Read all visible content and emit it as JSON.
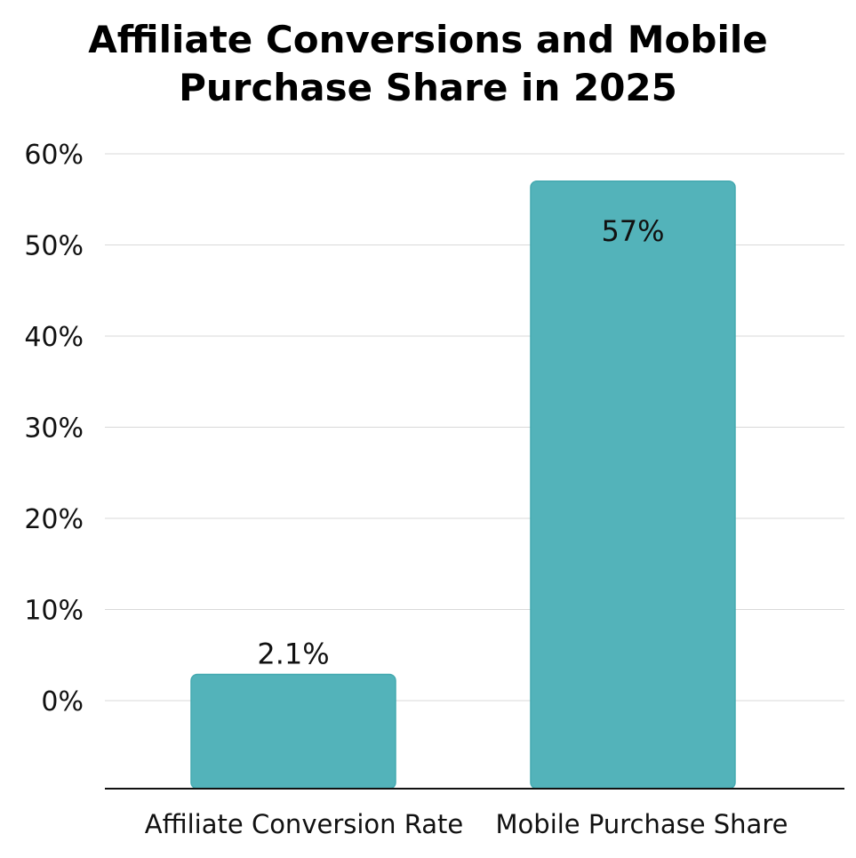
{
  "chart_data": {
    "type": "bar",
    "title": "Affiliate Conversions and Mobile Purchase Share in 2025",
    "categories": [
      "Affiliate Conversion Rate",
      "Mobile Purchase Share"
    ],
    "values": [
      2.1,
      57
    ],
    "data_labels": [
      "2.1%",
      "57%"
    ],
    "xlabel": "",
    "ylabel": "",
    "ylim": [
      0,
      60
    ],
    "yticks": [
      0,
      10,
      20,
      30,
      40,
      50,
      60
    ],
    "ytick_labels": [
      "0%",
      "10%",
      "20%",
      "30%",
      "40%",
      "50%",
      "60%"
    ],
    "grid": true,
    "bar_color": "#53b3ba",
    "bar_edge_color": "#44a9b0"
  }
}
